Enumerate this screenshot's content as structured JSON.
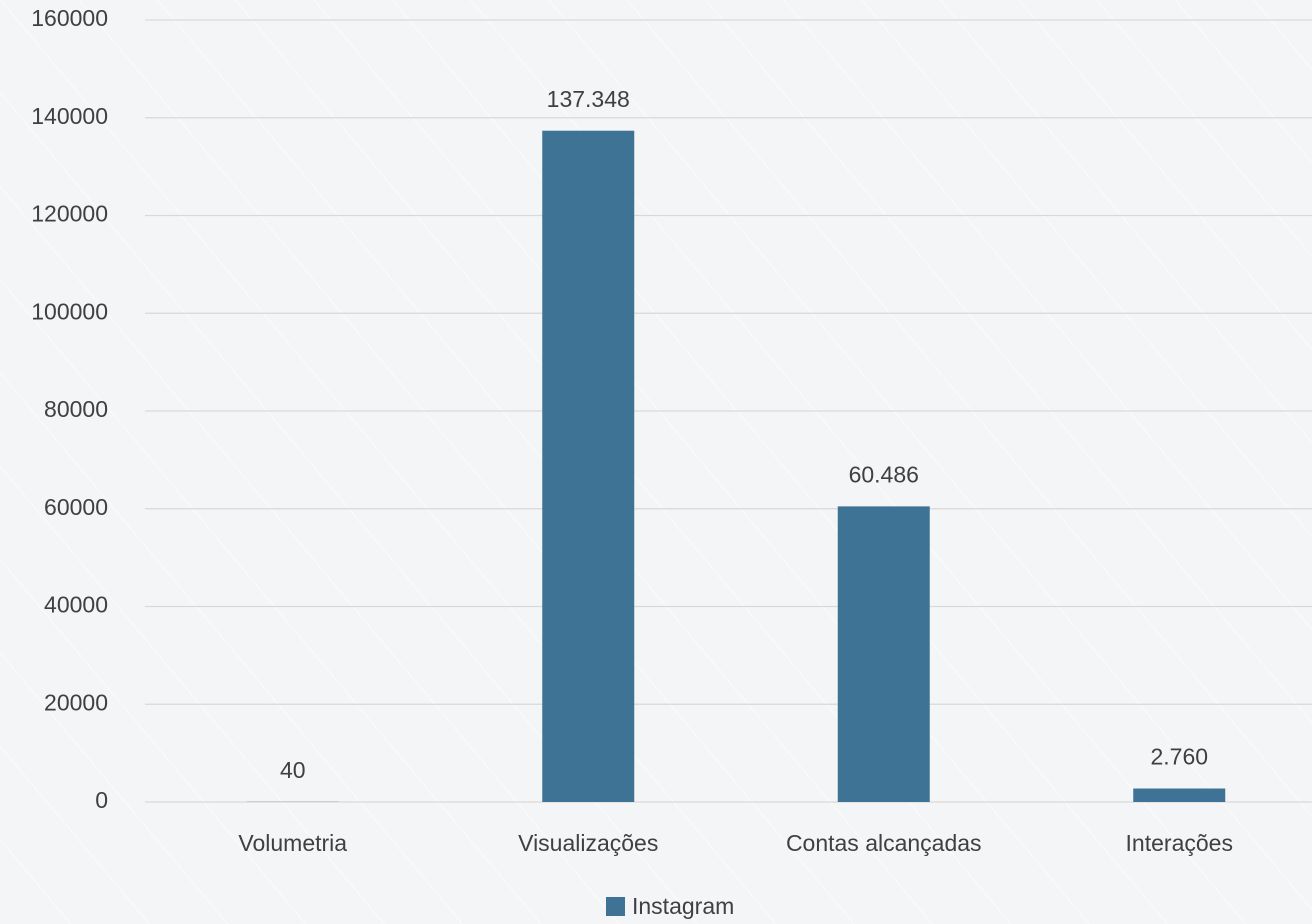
{
  "chart_data": {
    "type": "bar",
    "categories": [
      "Volumetria",
      "Visualizações",
      "Contas alcançadas",
      "Interações"
    ],
    "series": [
      {
        "name": "Instagram",
        "color": "#3e7396",
        "values": [
          40,
          137348,
          60486,
          2760
        ],
        "value_labels": [
          "40",
          "137.348",
          "60.486",
          "2.760"
        ]
      }
    ],
    "ylim": [
      0,
      160000
    ],
    "yticks": [
      0,
      20000,
      40000,
      60000,
      80000,
      100000,
      120000,
      140000,
      160000
    ],
    "grid": true,
    "legend": "bottom"
  }
}
